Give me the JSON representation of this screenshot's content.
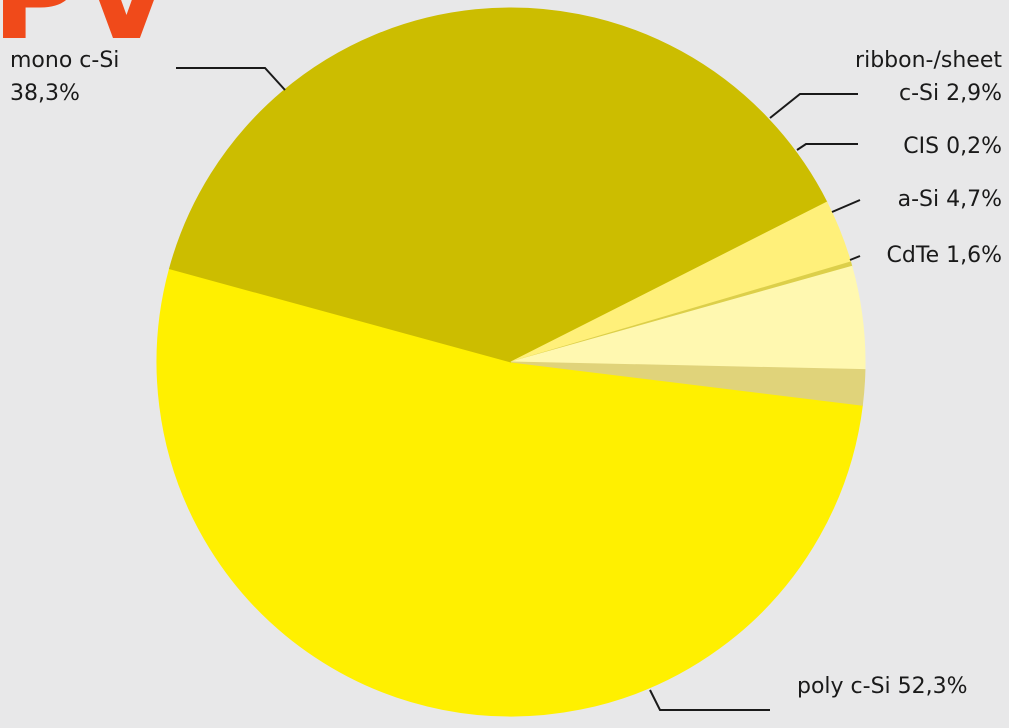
{
  "header": {
    "logo_text": "PV",
    "logo_color": "#f04a1a"
  },
  "chart_data": {
    "type": "pie",
    "title": "",
    "start_angle_deg": 7,
    "direction": "clockwise",
    "slices": [
      {
        "label": "poly c-Si 52,3%",
        "value": 52.3,
        "color": "#fff000"
      },
      {
        "label": "mono c-Si\n38,3%",
        "value": 38.3,
        "color": "#ccbd00"
      },
      {
        "label": "ribbon-/sheet\nc-Si 2,9%",
        "value": 2.9,
        "color": "#fff07a"
      },
      {
        "label": "CIS 0,2%",
        "value": 0.2,
        "color": "#dccf4a"
      },
      {
        "label": "a-Si 4,7%",
        "value": 4.7,
        "color": "#fff8b0"
      },
      {
        "label": "CdTe 1,6%",
        "value": 1.6,
        "color": "#e0d37a"
      }
    ],
    "leader_color": "#1a1a1a",
    "background": "#e8e8e9"
  }
}
